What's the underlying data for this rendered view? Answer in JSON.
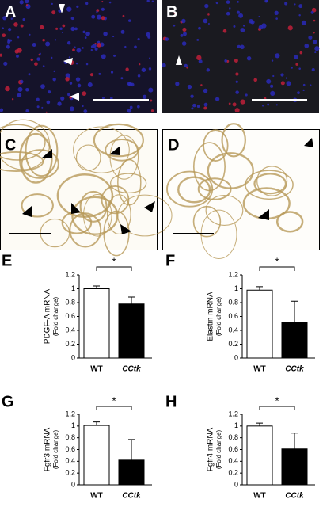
{
  "images": [
    {
      "label": "A"
    },
    {
      "label": "B"
    },
    {
      "label": "C"
    },
    {
      "label": "D"
    }
  ],
  "chart_data": [
    {
      "type": "bar",
      "label": "E",
      "ylabel": "PDGF-A mRNA",
      "ylabel_note": "(Fold change)",
      "categories": [
        "WT",
        "CCtk"
      ],
      "values": [
        1.0,
        0.78
      ],
      "errors": [
        0.04,
        0.1
      ],
      "colors": [
        "#ffffff",
        "#000000"
      ],
      "ylim": [
        0,
        1.2
      ],
      "yticks": [
        0,
        0.2,
        0.4,
        0.6,
        0.8,
        1,
        1.2
      ],
      "significance": "*"
    },
    {
      "type": "bar",
      "label": "F",
      "ylabel": "Elastin mRNA",
      "ylabel_note": "(Fold change)",
      "categories": [
        "WT",
        "CCtk"
      ],
      "values": [
        0.98,
        0.52
      ],
      "errors": [
        0.05,
        0.3
      ],
      "colors": [
        "#ffffff",
        "#000000"
      ],
      "ylim": [
        0,
        1.2
      ],
      "yticks": [
        0,
        0.2,
        0.4,
        0.6,
        0.8,
        1,
        1.2
      ],
      "significance": "*"
    },
    {
      "type": "bar",
      "label": "G",
      "ylabel": "Fgfr3 mRNA",
      "ylabel_note": "(Fold change)",
      "categories": [
        "WT",
        "CCtk"
      ],
      "values": [
        1.01,
        0.42
      ],
      "errors": [
        0.06,
        0.35
      ],
      "colors": [
        "#ffffff",
        "#000000"
      ],
      "ylim": [
        0,
        1.2
      ],
      "yticks": [
        0,
        0.2,
        0.4,
        0.6,
        0.8,
        1,
        1.2
      ],
      "significance": "*"
    },
    {
      "type": "bar",
      "label": "H",
      "ylabel": "Fgfr4 mRNA",
      "ylabel_note": "(Fold change)",
      "categories": [
        "WT",
        "CCtk"
      ],
      "values": [
        1.0,
        0.61
      ],
      "errors": [
        0.05,
        0.27
      ],
      "colors": [
        "#ffffff",
        "#000000"
      ],
      "ylim": [
        0,
        1.2
      ],
      "yticks": [
        0,
        0.2,
        0.4,
        0.6,
        0.8,
        1,
        1.2
      ],
      "significance": "*"
    }
  ]
}
